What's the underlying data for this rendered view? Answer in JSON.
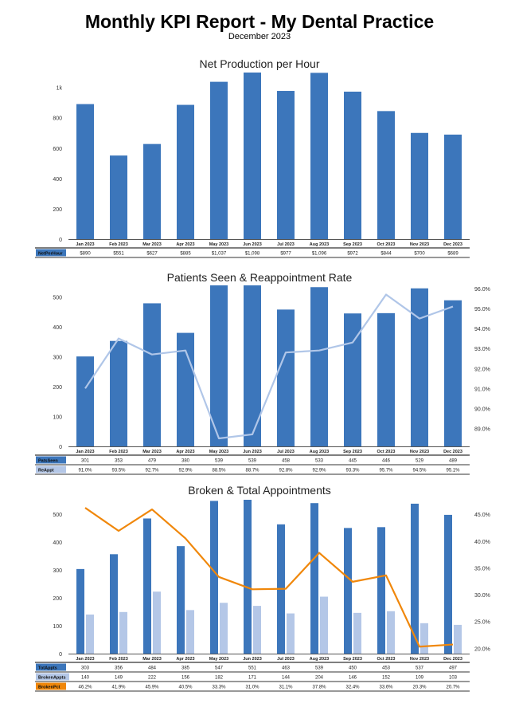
{
  "report": {
    "title": "Monthly KPI Report - My Dental Practice",
    "subtitle": "December 2023"
  },
  "colors": {
    "bar_dark": "#3c76bb",
    "bar_light": "#b4c7e7",
    "line_light": "#b0c6e8",
    "line_orange": "#f0870a",
    "label_dark": "#3c76bb",
    "label_light": "#b4c7e7",
    "label_orange": "#f0870a"
  },
  "chart_data": [
    {
      "type": "bar",
      "title": "Net Production per Hour",
      "categories": [
        "Jan 2023",
        "Feb 2023",
        "Mar 2023",
        "Apr 2023",
        "May 2023",
        "Jun 2023",
        "Jul 2023",
        "Aug 2023",
        "Sep 2023",
        "Oct 2023",
        "Nov 2023",
        "Dec 2023"
      ],
      "series": [
        {
          "name": "NetPerHour",
          "values": [
            890,
            551,
            627,
            885,
            1037,
            1098,
            977,
            1096,
            972,
            844,
            700,
            689
          ],
          "table": [
            "$890",
            "$551",
            "$627",
            "$885",
            "$1,037",
            "$1,098",
            "$977",
            "$1,096",
            "$972",
            "$844",
            "$700",
            "$689"
          ]
        }
      ],
      "ylim": [
        0,
        1098
      ],
      "yticks": [
        {
          "v": 0,
          "label": "0"
        },
        {
          "v": 200,
          "label": "200"
        },
        {
          "v": 400,
          "label": "400"
        },
        {
          "v": 600,
          "label": "600"
        },
        {
          "v": 800,
          "label": "800"
        },
        {
          "v": 1000,
          "label": "1k"
        }
      ],
      "grid": false
    },
    {
      "type": "bar+line",
      "title": "Patients Seen & Reappointment Rate",
      "categories": [
        "Jan 2023",
        "Feb 2023",
        "Mar 2023",
        "Apr 2023",
        "May 2023",
        "Jun 2023",
        "Jul 2023",
        "Aug 2023",
        "Sep 2023",
        "Oct 2023",
        "Nov 2023",
        "Dec 2023"
      ],
      "series": [
        {
          "name": "PatsSeen",
          "kind": "bar",
          "axis": "left",
          "values": [
            301,
            353,
            479,
            380,
            539,
            539,
            458,
            533,
            445,
            446,
            529,
            489
          ],
          "table": [
            "301",
            "353",
            "479",
            "380",
            "539",
            "539",
            "458",
            "533",
            "445",
            "446",
            "529",
            "489"
          ]
        },
        {
          "name": "ReAppt",
          "kind": "line",
          "axis": "right",
          "values": [
            91.0,
            93.5,
            92.7,
            92.9,
            88.5,
            88.7,
            92.8,
            92.9,
            93.3,
            95.7,
            94.5,
            95.1
          ],
          "table": [
            "91.0%",
            "93.5%",
            "92.7%",
            "92.9%",
            "88.5%",
            "88.7%",
            "92.8%",
            "92.9%",
            "93.3%",
            "95.7%",
            "94.5%",
            "95.1%"
          ]
        }
      ],
      "ylim": [
        0,
        539
      ],
      "yticks": [
        {
          "v": 0,
          "label": "0"
        },
        {
          "v": 100,
          "label": "100"
        },
        {
          "v": 200,
          "label": "200"
        },
        {
          "v": 300,
          "label": "300"
        },
        {
          "v": 400,
          "label": "400"
        },
        {
          "v": 500,
          "label": "500"
        }
      ],
      "y2lim": [
        88.1,
        96.16
      ],
      "y2ticks": [
        {
          "v": 89,
          "label": "89.0%"
        },
        {
          "v": 90,
          "label": "90.0%"
        },
        {
          "v": 91,
          "label": "91.0%"
        },
        {
          "v": 92,
          "label": "92.0%"
        },
        {
          "v": 93,
          "label": "93.0%"
        },
        {
          "v": 94,
          "label": "94.0%"
        },
        {
          "v": 95,
          "label": "95.0%"
        },
        {
          "v": 96,
          "label": "96.0%"
        }
      ],
      "grid": false
    },
    {
      "type": "bar+line",
      "title": "Broken & Total Appointments",
      "categories": [
        "Jan 2023",
        "Feb 2023",
        "Mar 2023",
        "Apr 2023",
        "May 2023",
        "Jun 2023",
        "Jul 2023",
        "Aug 2023",
        "Sep 2023",
        "Oct 2023",
        "Nov 2023",
        "Dec 2023"
      ],
      "series": [
        {
          "name": "TotAppts",
          "kind": "bar",
          "axis": "left",
          "values": [
            303,
            356,
            484,
            385,
            547,
            551,
            463,
            539,
            450,
            453,
            537,
            497
          ],
          "table": [
            "303",
            "356",
            "484",
            "385",
            "547",
            "551",
            "463",
            "539",
            "450",
            "453",
            "537",
            "497"
          ]
        },
        {
          "name": "BrokenAppts",
          "kind": "bar",
          "axis": "left",
          "values": [
            140,
            149,
            222,
            156,
            182,
            171,
            144,
            204,
            146,
            152,
            109,
            103
          ],
          "table": [
            "140",
            "149",
            "222",
            "156",
            "182",
            "171",
            "144",
            "204",
            "146",
            "152",
            "109",
            "103"
          ]
        },
        {
          "name": "BrokenPct",
          "kind": "line",
          "axis": "right",
          "values": [
            46.2,
            41.9,
            45.9,
            40.5,
            33.3,
            31.0,
            31.1,
            37.8,
            32.4,
            33.6,
            20.3,
            20.7
          ],
          "table": [
            "46.2%",
            "41.9%",
            "45.9%",
            "40.5%",
            "33.3%",
            "31.0%",
            "31.1%",
            "37.8%",
            "32.4%",
            "33.6%",
            "20.3%",
            "20.7%"
          ]
        }
      ],
      "ylim": [
        0,
        551
      ],
      "yticks": [
        {
          "v": 0,
          "label": "0"
        },
        {
          "v": 100,
          "label": "100"
        },
        {
          "v": 200,
          "label": "200"
        },
        {
          "v": 300,
          "label": "300"
        },
        {
          "v": 400,
          "label": "400"
        },
        {
          "v": 500,
          "label": "500"
        }
      ],
      "y2lim": [
        19.0,
        47.7
      ],
      "y2ticks": [
        {
          "v": 20,
          "label": "20.0%"
        },
        {
          "v": 25,
          "label": "25.0%"
        },
        {
          "v": 30,
          "label": "30.0%"
        },
        {
          "v": 35,
          "label": "35.0%"
        },
        {
          "v": 40,
          "label": "40.0%"
        },
        {
          "v": 45,
          "label": "45.0%"
        }
      ],
      "grid": false
    }
  ]
}
